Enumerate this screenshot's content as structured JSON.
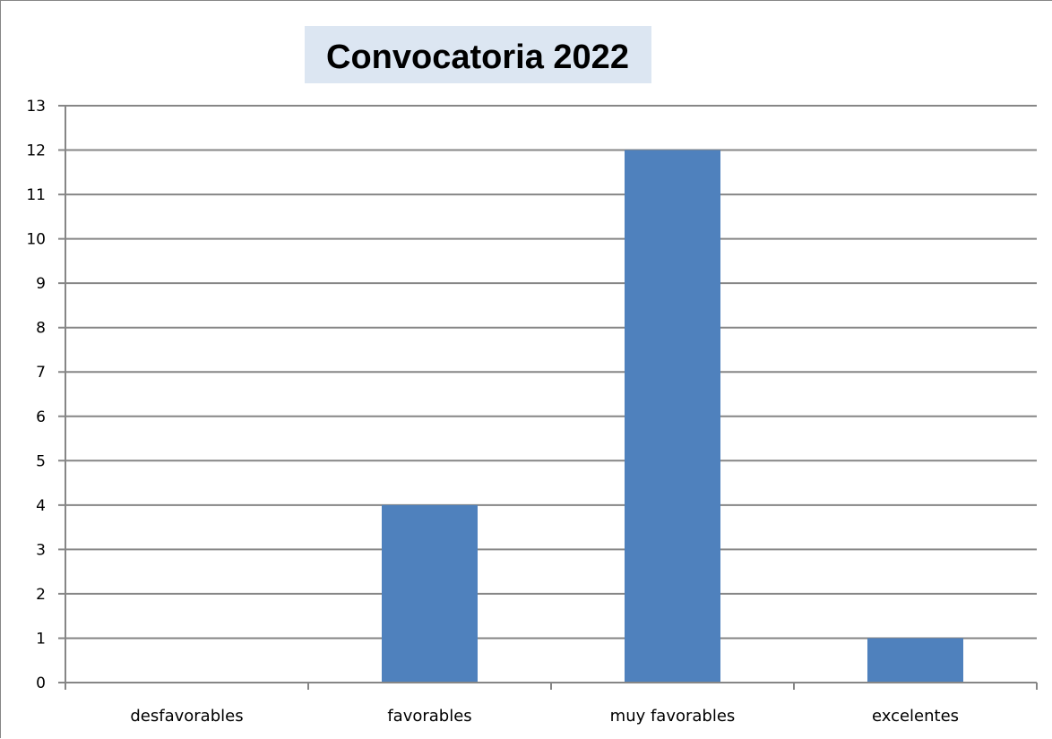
{
  "chart_data": {
    "type": "bar",
    "title": "Convocatoria 2022",
    "categories": [
      "desfavorables",
      "favorables",
      "muy favorables",
      "excelentes"
    ],
    "values": [
      0,
      4,
      12,
      1
    ],
    "ylim": [
      0,
      13
    ],
    "yticks": [
      0,
      1,
      2,
      3,
      4,
      5,
      6,
      7,
      8,
      9,
      10,
      11,
      12,
      13
    ],
    "grid": true,
    "legend": "none",
    "xlabel": "",
    "ylabel": "",
    "colors": {
      "bar": "#4f81bd",
      "title_background": "#dce6f2",
      "gridline": "#868686"
    }
  }
}
